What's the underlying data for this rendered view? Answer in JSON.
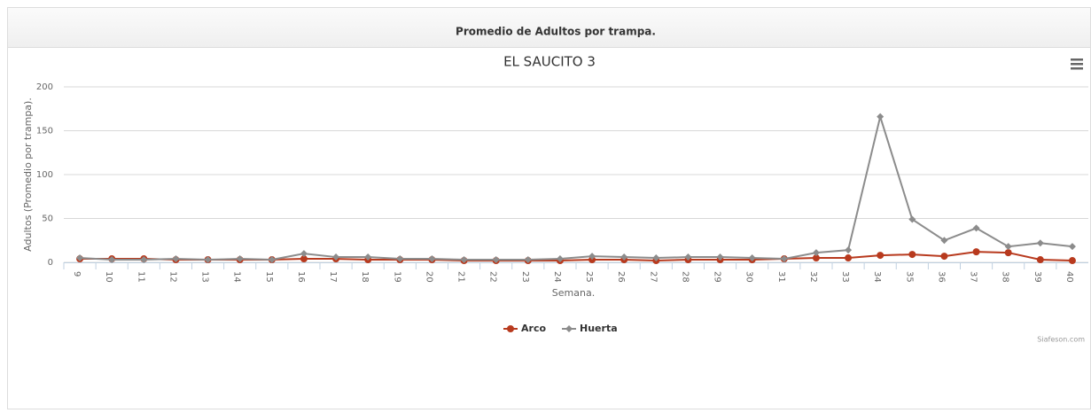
{
  "panel_title": "Promedio de Adultos por trampa.",
  "chart_data": {
    "type": "line",
    "title": "EL SAUCITO 3",
    "x_label": "Semana.",
    "y_label": "Adultos (Promedio por trampa).",
    "categories": [
      "9",
      "10",
      "11",
      "12",
      "13",
      "14",
      "15",
      "16",
      "17",
      "18",
      "19",
      "20",
      "21",
      "22",
      "23",
      "24",
      "25",
      "26",
      "27",
      "28",
      "29",
      "30",
      "31",
      "32",
      "33",
      "34",
      "35",
      "36",
      "37",
      "38",
      "39",
      "40"
    ],
    "series": [
      {
        "name": "Arco",
        "color": "#b83a1e",
        "marker": "circle",
        "values": [
          4,
          4,
          4,
          3,
          3,
          3,
          3,
          4,
          4,
          3,
          3,
          3,
          2,
          2,
          2,
          2,
          3,
          3,
          2,
          3,
          3,
          3,
          4,
          5,
          5,
          8,
          9,
          7,
          12,
          11,
          3,
          2
        ]
      },
      {
        "name": "Huerta",
        "color": "#8c8c8c",
        "marker": "diamond",
        "values": [
          5,
          3,
          3,
          4,
          3,
          4,
          3,
          10,
          6,
          6,
          4,
          4,
          3,
          3,
          3,
          4,
          7,
          6,
          5,
          6,
          6,
          5,
          4,
          11,
          14,
          166,
          49,
          25,
          39,
          18,
          22,
          18
        ]
      }
    ],
    "ylim": [
      0,
      200
    ],
    "yticks": [
      0,
      50,
      100,
      150,
      200
    ],
    "grid": true,
    "credits": "Siafeson.com"
  }
}
